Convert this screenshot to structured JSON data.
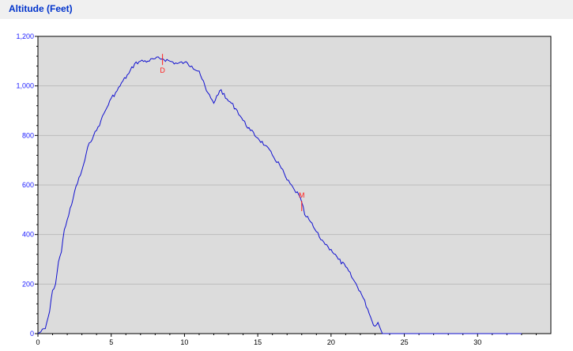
{
  "chart_title": "Altitude (Feet)",
  "chart_data": {
    "type": "line",
    "title": "Altitude (Feet)",
    "xlabel": "",
    "ylabel": "",
    "xlim": [
      0,
      35
    ],
    "ylim": [
      0,
      1200
    ],
    "x_ticks": [
      "0",
      "5",
      "10",
      "15",
      "20",
      "25",
      "30"
    ],
    "y_ticks": [
      "0",
      "200",
      "400",
      "600",
      "800",
      "1,000",
      "1,200"
    ],
    "grid": true,
    "colors": {
      "line": "#1010d0",
      "marker": "#ff2020",
      "plot_bg": "#dcdcdc",
      "grid": "#bdbdbd"
    },
    "series": [
      {
        "x": [
          0,
          0.5,
          0.8,
          1.0,
          1.2,
          1.4,
          1.6,
          1.8,
          2.0,
          2.3,
          2.6,
          2.9,
          3.2,
          3.5,
          3.8,
          4.0,
          4.3,
          4.6,
          5.0,
          5.4,
          5.8,
          6.2,
          6.6,
          7.0,
          7.5,
          8.0,
          8.5,
          9.0,
          9.5,
          10.0,
          10.5,
          11.0,
          11.5,
          11.8,
          12.0,
          12.2,
          12.5,
          12.8,
          13.2,
          13.6,
          14.0,
          14.5,
          15.0,
          15.5,
          16.0,
          16.5,
          17.0,
          17.5,
          17.8,
          18.0,
          18.2,
          18.5,
          18.8,
          19.2,
          19.5,
          19.8,
          20.0,
          20.5,
          21.0,
          21.5,
          22.0,
          22.5,
          22.8,
          23.0,
          23.2,
          23.5,
          24.0,
          25.0,
          30.0,
          33.0
        ],
        "y": [
          0,
          20,
          90,
          175,
          200,
          290,
          330,
          420,
          460,
          520,
          595,
          640,
          700,
          770,
          800,
          820,
          860,
          900,
          950,
          980,
          1020,
          1050,
          1090,
          1100,
          1100,
          1110,
          1110,
          1100,
          1090,
          1095,
          1080,
          1060,
          980,
          950,
          930,
          960,
          985,
          950,
          930,
          900,
          860,
          820,
          790,
          760,
          720,
          680,
          620,
          580,
          560,
          530,
          480,
          460,
          430,
          390,
          370,
          350,
          340,
          300,
          270,
          220,
          170,
          100,
          50,
          30,
          45,
          0,
          0,
          0,
          0,
          0
        ]
      }
    ],
    "annotations": [
      {
        "label": "D",
        "x": 8.5,
        "y": 1110
      },
      {
        "label": "M",
        "x": 18.0,
        "y": 520
      }
    ]
  }
}
